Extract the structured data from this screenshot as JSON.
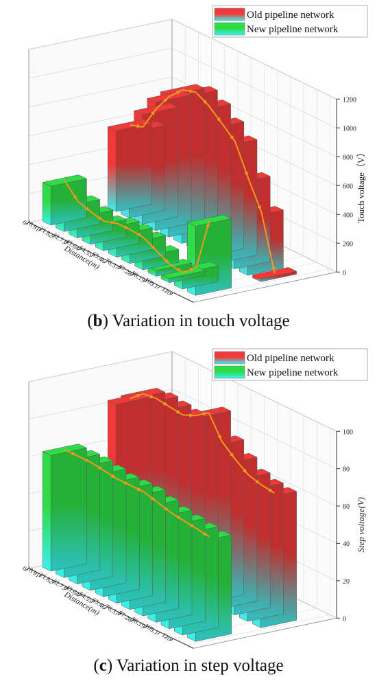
{
  "captions": {
    "b": {
      "letter": "b",
      "pre": "(",
      "post": ") Variation in touch voltage"
    },
    "c": {
      "letter": "c",
      "pre": "(",
      "post": ") Variation in step voltage"
    }
  },
  "chart_data": [
    {
      "type": "bar",
      "subtype": "3d-bar",
      "title": "",
      "xlabel": "Distance(m)",
      "ylabel": "Touch voltage（V）",
      "categories": [
        "0",
        "10.91",
        "21.82",
        "32.73",
        "43.64",
        "54.55",
        "65.46",
        "76.37",
        "87.28",
        "98.19",
        "109.1",
        "120"
      ],
      "zlim": [
        0,
        1200
      ],
      "zticks": [
        "0",
        "200",
        "400",
        "600",
        "800",
        "1000",
        "1200"
      ],
      "legend_position": "top-right",
      "grid": true,
      "series": [
        {
          "name": "Old pipeline network",
          "values": [
            560,
            590,
            760,
            890,
            980,
            1010,
            960,
            880,
            800,
            590,
            400,
            20
          ]
        },
        {
          "name": "New pipeline network",
          "values": [
            270,
            170,
            140,
            120,
            150,
            150,
            140,
            90,
            40,
            30,
            110,
            480
          ]
        }
      ]
    },
    {
      "type": "bar",
      "subtype": "3d-bar",
      "title": "",
      "xlabel": "Distance(m)",
      "ylabel": "Step voltage(V)",
      "categories": [
        "0",
        "10.91",
        "21.82",
        "32.73",
        "43.64",
        "54.55",
        "65.46",
        "76.37",
        "87.28",
        "98.19",
        "109.1",
        "120"
      ],
      "zlim": [
        0,
        100
      ],
      "zticks": [
        "0",
        "20",
        "40",
        "60",
        "80",
        "100"
      ],
      "legend_position": "top-right",
      "grid": true,
      "series": [
        {
          "name": "Old pipeline network",
          "values": [
            82,
            88,
            89,
            88,
            87,
            90,
            95,
            83,
            77,
            72,
            70,
            69
          ]
        },
        {
          "name": "New pipeline network",
          "values": [
            62,
            62,
            62,
            61,
            60,
            60,
            60,
            58,
            56,
            55,
            54,
            53
          ]
        }
      ]
    }
  ]
}
